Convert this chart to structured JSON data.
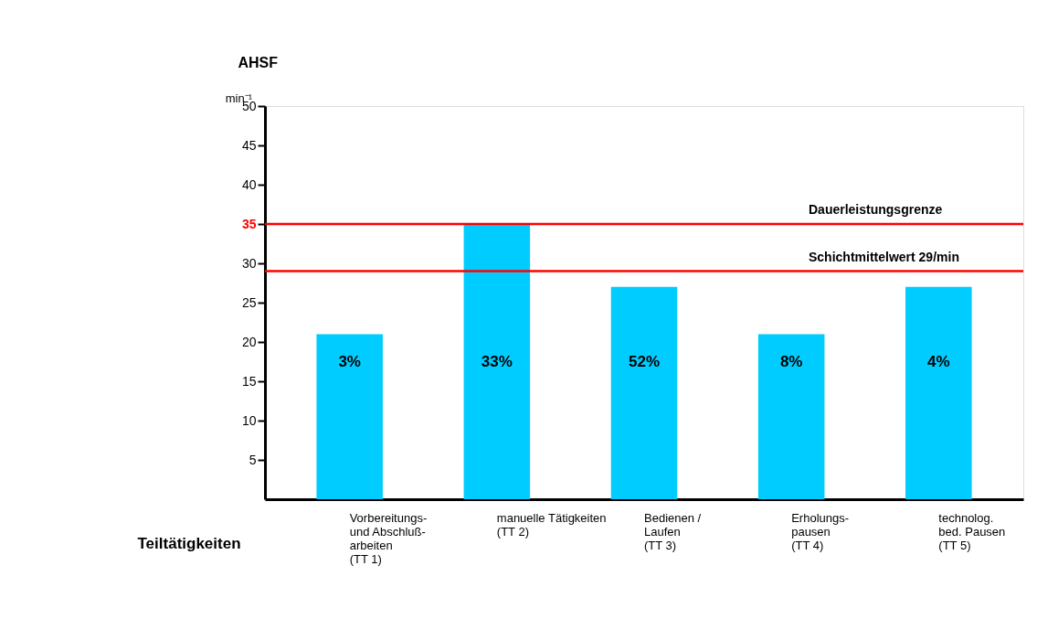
{
  "chart_data": {
    "type": "bar",
    "ylabel": "AHSF",
    "xlabel": "Teiltätigkeiten",
    "categories": [
      "Vorbereitungs-\nund Abschluß-\narbeiten\n(TT 1)",
      "manuelle Tätigkeiten\n(TT 2)",
      "Bedienen /\nLaufen\n(TT 3)",
      "Erholungs-\npausen\n(TT 4)",
      "technolog.\nbed. Pausen\n(TT 5)"
    ],
    "values": [
      21,
      35,
      27,
      21,
      27
    ],
    "color": "#00ccff",
    "ylim": [
      0,
      50
    ],
    "yticks": [
      5,
      10,
      15,
      20,
      25,
      30,
      35,
      40,
      45,
      50
    ],
    "ref_lines": [
      {
        "axis": "y",
        "value": 35,
        "label": "Dauerleistungsgrenze",
        "color": "#ff0000"
      },
      {
        "axis": "y",
        "value": 29,
        "label": "Schichtmittelwert 29/min",
        "color": "#ff0000"
      }
    ],
    "annotations": [
      "min⁻¹",
      "3%",
      "33%",
      "52%",
      "8%",
      "4%"
    ],
    "grid": false
  }
}
